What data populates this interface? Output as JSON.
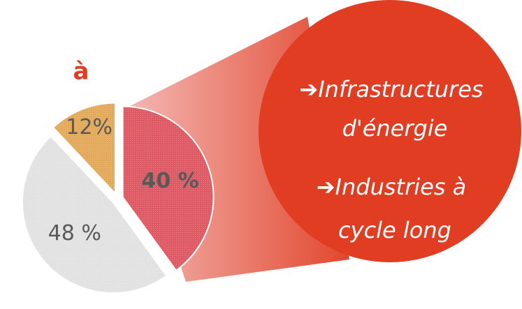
{
  "chart_data": {
    "type": "pie",
    "title": "à",
    "values": [
      40,
      48,
      12
    ],
    "value_labels": [
      "40 %",
      "48 %",
      "12%"
    ],
    "colors": [
      "#de5a64",
      "#e2e2e2",
      "#e2aa5a"
    ],
    "callout_color": "#e03d22",
    "annotations": [
      "➔Infrastructures",
      "d'énergie",
      "➔Industries à",
      "cycle long"
    ]
  }
}
